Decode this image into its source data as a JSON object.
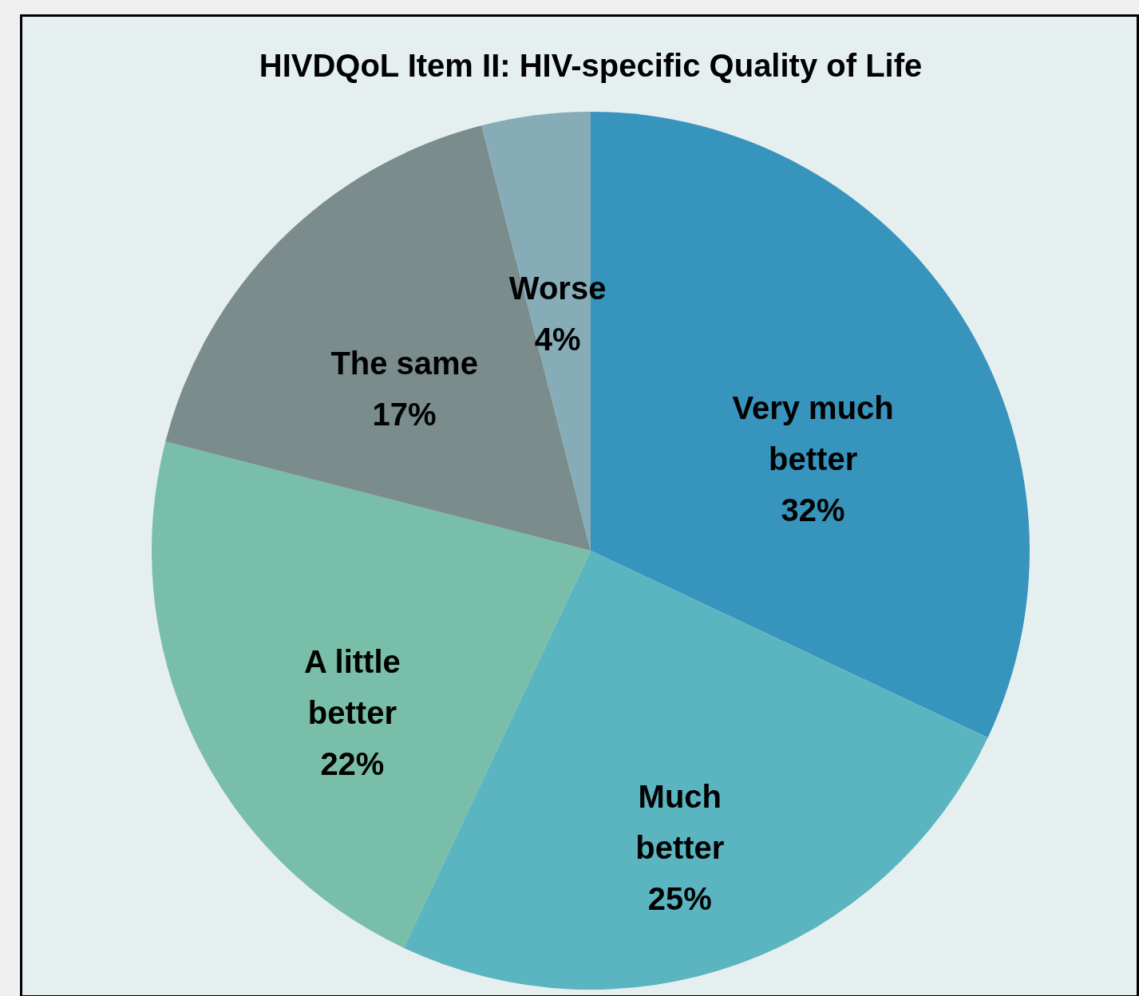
{
  "chart_data": {
    "type": "pie",
    "title": "HIVDQoL Item II: HIV-specific Quality of Life",
    "categories": [
      "Very much better",
      "Much better",
      "A little better",
      "The same",
      "Worse"
    ],
    "values": [
      32,
      25,
      22,
      17,
      4
    ],
    "colors": [
      "#3794bc",
      "#5ab5c1",
      "#79bea9",
      "#7b8c8c",
      "#86acb8"
    ],
    "value_labels": [
      "32%",
      "25%",
      "22%",
      "17%",
      "4%"
    ],
    "legend": false
  }
}
